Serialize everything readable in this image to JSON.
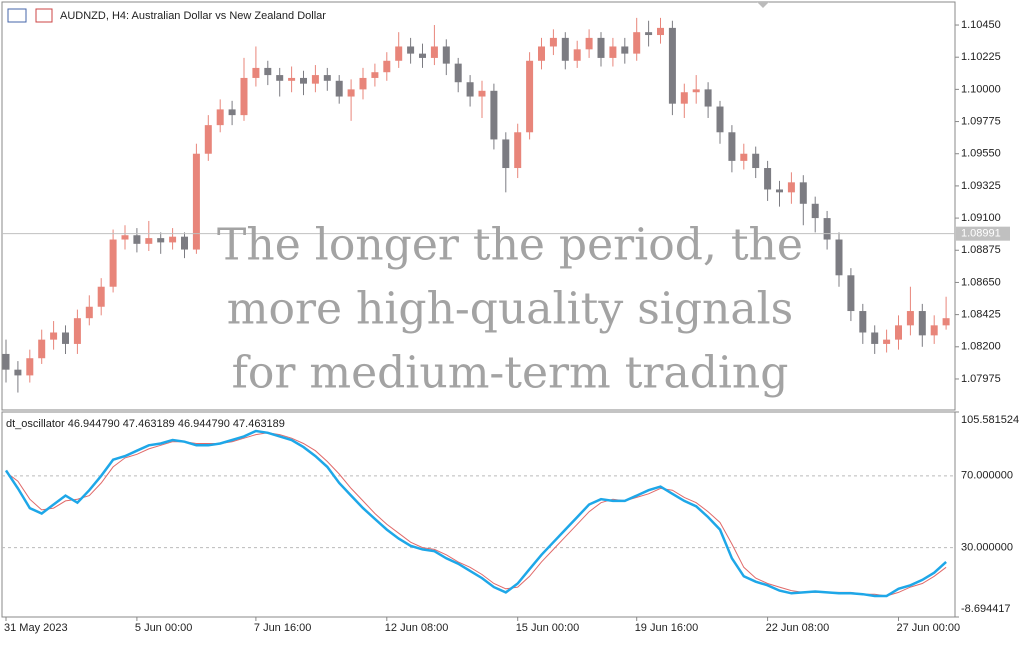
{
  "chart_data": [
    {
      "type": "candlestick",
      "title": "AUDNZD, H4:  Australian Dollar vs New Zealand Dollar",
      "annotation": [
        "The longer the period, the",
        "more high-quality signals",
        "for medium-term trading"
      ],
      "categories": [
        "31 May 2023",
        null,
        null,
        null,
        null,
        null,
        null,
        null,
        null,
        null,
        null,
        "5 Jun 00:00",
        null,
        null,
        null,
        null,
        null,
        null,
        null,
        null,
        null,
        "7 Jun 16:00",
        null,
        null,
        null,
        null,
        null,
        null,
        null,
        null,
        null,
        null,
        "12 Jun 08:00",
        null,
        null,
        null,
        null,
        null,
        null,
        null,
        null,
        null,
        null,
        "15 Jun 00:00",
        null,
        null,
        null,
        null,
        null,
        null,
        null,
        null,
        null,
        "19 Jun 16:00",
        null,
        null,
        null,
        null,
        null,
        null,
        null,
        null,
        null,
        null,
        "22 Jun 08:00",
        null,
        null,
        null,
        null,
        null,
        null,
        null,
        null,
        null,
        null,
        "27 Jun 00:00",
        null,
        null,
        null,
        null
      ],
      "open": [
        1.0815,
        1.0804,
        1.08,
        1.0812,
        1.0825,
        1.083,
        1.0822,
        1.084,
        1.0848,
        1.0862,
        1.0895,
        1.0898,
        1.0892,
        1.0896,
        1.0893,
        1.0897,
        1.0888,
        1.0955,
        1.0975,
        1.0986,
        1.0982,
        1.1008,
        1.1015,
        1.101,
        1.1006,
        1.1008,
        1.1004,
        1.101,
        1.1006,
        1.0995,
        1.1,
        1.1008,
        1.1012,
        1.102,
        1.103,
        1.1025,
        1.1022,
        1.103,
        1.1018,
        1.1005,
        1.0995,
        1.0999,
        1.0965,
        1.0945,
        1.097,
        1.102,
        1.103,
        1.1036,
        1.102,
        1.1028,
        1.1036,
        1.1022,
        1.103,
        1.1025,
        1.104,
        1.1038,
        1.1043,
        1.099,
        1.0998,
        1.1,
        1.0988,
        1.097,
        1.095,
        1.0955,
        1.0945,
        1.093,
        1.0928,
        1.0935,
        1.092,
        1.091,
        1.0895,
        1.087,
        1.0845,
        1.083,
        1.0822,
        1.0825,
        1.0835,
        1.0845,
        1.0828,
        1.0835
      ],
      "high": [
        1.0825,
        1.081,
        1.0818,
        1.0832,
        1.0838,
        1.0835,
        1.0846,
        1.0856,
        1.0868,
        1.0902,
        1.0905,
        1.0903,
        1.0908,
        1.09,
        1.0903,
        1.09,
        1.0962,
        1.0982,
        1.0993,
        1.0992,
        1.1022,
        1.103,
        1.102,
        1.1015,
        1.1016,
        1.1013,
        1.1017,
        1.1015,
        1.101,
        1.1007,
        1.1015,
        1.1018,
        1.1026,
        1.104,
        1.1036,
        1.1032,
        1.1045,
        1.1035,
        1.1022,
        1.101,
        1.1006,
        1.1004,
        1.097,
        1.0976,
        1.1026,
        1.1036,
        1.1042,
        1.104,
        1.1034,
        1.1042,
        1.104,
        1.1036,
        1.1036,
        1.105,
        1.1048,
        1.105,
        1.1048,
        1.1004,
        1.101,
        1.1005,
        1.0992,
        1.0975,
        1.0962,
        1.096,
        1.095,
        1.0936,
        1.0942,
        1.094,
        1.0925,
        1.0915,
        1.09,
        1.0875,
        1.085,
        1.0835,
        1.0832,
        1.0842,
        1.0862,
        1.085,
        1.0842,
        1.0855
      ],
      "low": [
        1.0795,
        1.0788,
        1.0795,
        1.0808,
        1.0818,
        1.0815,
        1.0815,
        1.0835,
        1.0842,
        1.0858,
        1.0888,
        1.0886,
        1.0887,
        1.0885,
        1.0888,
        1.0882,
        1.0885,
        1.095,
        1.097,
        1.0975,
        1.0978,
        1.1002,
        1.1003,
        1.0995,
        1.0998,
        1.0996,
        1.0998,
        1.0999,
        1.099,
        1.0978,
        1.0993,
        1.1002,
        1.1006,
        1.1015,
        1.1018,
        1.1015,
        1.1017,
        1.101,
        1.0998,
        1.0988,
        1.098,
        1.0958,
        1.0928,
        1.0938,
        1.0965,
        1.1014,
        1.1024,
        1.1014,
        1.1015,
        1.1022,
        1.1016,
        1.1016,
        1.1018,
        1.102,
        1.103,
        1.1032,
        1.0982,
        1.098,
        1.099,
        1.098,
        1.0962,
        1.0942,
        1.0944,
        1.0938,
        1.0922,
        1.0918,
        1.092,
        1.0905,
        1.09,
        1.0888,
        1.0862,
        1.0838,
        1.0822,
        1.0815,
        1.0816,
        1.0818,
        1.0828,
        1.082,
        1.0822,
        1.0832
      ],
      "close": [
        1.0804,
        1.08,
        1.0812,
        1.0825,
        1.083,
        1.0822,
        1.084,
        1.0848,
        1.0862,
        1.0895,
        1.0898,
        1.0892,
        1.0896,
        1.0893,
        1.0897,
        1.0888,
        1.0955,
        1.0975,
        1.0986,
        1.0982,
        1.1008,
        1.1015,
        1.101,
        1.1006,
        1.1008,
        1.1004,
        1.101,
        1.1006,
        1.0995,
        1.1,
        1.1008,
        1.1012,
        1.102,
        1.103,
        1.1025,
        1.1022,
        1.103,
        1.1018,
        1.1005,
        1.0995,
        1.0999,
        1.0965,
        1.0945,
        1.097,
        1.102,
        1.103,
        1.1036,
        1.102,
        1.1028,
        1.1036,
        1.1022,
        1.103,
        1.1025,
        1.104,
        1.1038,
        1.1043,
        1.099,
        1.0998,
        1.1,
        1.0988,
        1.097,
        1.095,
        1.0955,
        1.0945,
        1.093,
        1.0928,
        1.0935,
        1.092,
        1.091,
        1.0895,
        1.087,
        1.0845,
        1.083,
        1.0822,
        1.0825,
        1.0835,
        1.0845,
        1.0828,
        1.0835,
        1.084
      ],
      "up_color": "#e8857a",
      "down_color": "#7c7c82",
      "current_price": {
        "value": 1.08991,
        "label": "1.08991"
      },
      "ylim": [
        1.07758,
        1.10611
      ],
      "yticks": [
        {
          "value": 1.1045,
          "label": "1.10450"
        },
        {
          "value": 1.10225,
          "label": "1.10225"
        },
        {
          "value": 1.1,
          "label": "1.10000"
        },
        {
          "value": 1.09775,
          "label": "1.09775"
        },
        {
          "value": 1.0955,
          "label": "1.09550"
        },
        {
          "value": 1.09325,
          "label": "1.09325"
        },
        {
          "value": 1.091,
          "label": "1.09100"
        },
        {
          "value": 1.08875,
          "label": "1.08875"
        },
        {
          "value": 1.0865,
          "label": "1.08650"
        },
        {
          "value": 1.08425,
          "label": "1.08425"
        },
        {
          "value": 1.082,
          "label": "1.08200"
        },
        {
          "value": 1.07975,
          "label": "1.07975"
        }
      ]
    },
    {
      "type": "line",
      "title": "dt_oscillator 46.944790 47.463189 46.944790 47.463189",
      "series": [
        {
          "color": "#1ea7e8",
          "values": [
            73,
            63,
            52,
            49,
            54,
            59,
            55,
            62,
            70,
            79,
            81,
            84,
            87,
            88,
            90,
            89,
            87,
            87,
            88,
            90,
            92,
            95,
            94,
            92,
            90,
            86,
            81,
            75,
            66,
            59,
            52,
            46,
            40,
            35,
            31,
            29,
            28,
            24,
            21,
            17,
            13,
            8,
            5,
            10,
            18,
            26,
            33,
            40,
            47,
            54,
            57,
            56,
            56,
            59,
            62,
            64,
            60,
            56,
            53,
            47,
            40,
            24,
            14,
            11,
            9,
            6,
            4.5,
            5,
            5.5,
            5,
            4.5,
            4.5,
            4,
            3,
            3,
            7,
            9,
            12,
            16,
            22
          ]
        },
        {
          "color": "#e06a6a",
          "values": [
            72,
            67,
            57,
            51,
            52,
            56,
            57,
            59,
            66,
            75,
            80,
            82,
            85,
            87,
            89,
            89,
            88,
            88,
            88,
            89,
            91,
            93,
            94,
            93,
            91,
            88,
            84,
            78,
            71,
            63,
            56,
            49,
            43,
            38,
            33,
            30,
            29,
            26,
            22,
            19,
            15,
            10,
            7,
            8,
            14,
            22,
            29,
            36,
            43,
            50,
            55,
            57,
            56,
            58,
            60,
            63,
            62,
            58,
            55,
            50,
            44,
            32,
            19,
            13,
            10,
            8,
            6,
            5,
            5,
            5,
            5,
            5,
            4,
            4,
            3,
            5,
            8,
            10,
            14,
            19
          ]
        }
      ],
      "ylim": [
        -8.694417,
        105.581524
      ],
      "yticks": [
        105.581524,
        {
          "value": 70,
          "label": "70.000000"
        },
        {
          "value": 30,
          "label": "30.000000"
        },
        -8.694417
      ]
    }
  ]
}
